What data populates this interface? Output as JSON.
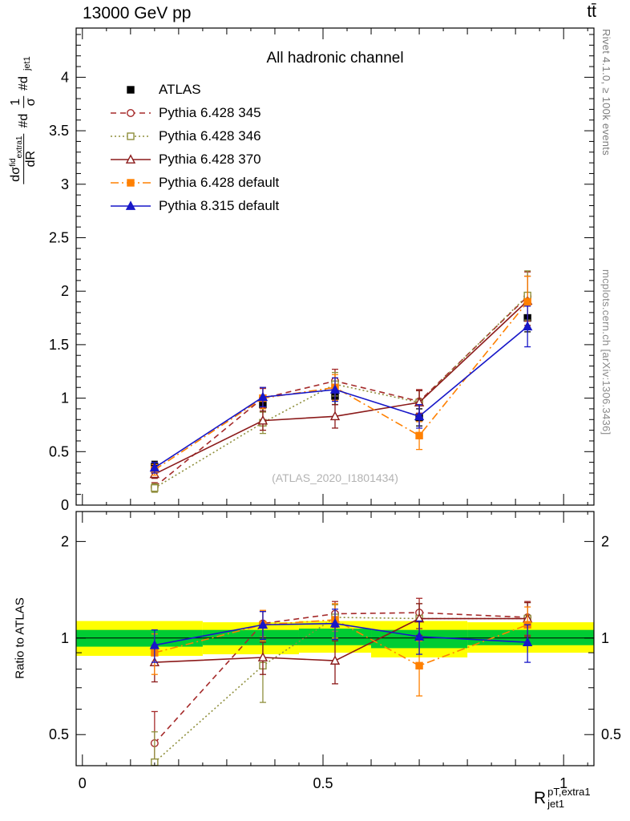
{
  "header": {
    "left": "13000 GeV pp",
    "right": "tt̄"
  },
  "side_notes": {
    "top": "Rivet 4.1.0, ≥ 100k events",
    "bottom": "mcplots.cern.ch [arXiv:1306.3436]"
  },
  "main_panel": {
    "title": "All hadronic channel",
    "watermark": "(ATLAS_2020_I1801434)"
  },
  "ratio_panel": {
    "ylabel": "Ratio to ATLAS"
  },
  "y_label": {
    "f2_num": "dσ",
    "f2_sup": "fid",
    "f2_sub": "extra1",
    "f2_den": "dR",
    "mid": "#d",
    "f1_num": "1",
    "f1_den": "σ",
    "pre": "#d",
    "tail": "jet1"
  },
  "x_label": {
    "base": "R",
    "sup": "pT,extra1",
    "sub": "jet1"
  },
  "chart_data": {
    "type": "line",
    "x": [
      0.15,
      0.375,
      0.525,
      0.7,
      0.925
    ],
    "xlim": [
      -0.013,
      1.063
    ],
    "xticks": [
      0,
      0.5,
      1
    ],
    "xtick_labels": [
      "0",
      "0.5",
      "1"
    ],
    "main": {
      "ylim": [
        0,
        4.46
      ],
      "yticks": [
        0,
        0.5,
        1,
        1.5,
        2,
        2.5,
        3,
        3.5,
        4
      ],
      "series": [
        {
          "name": "ATLAS",
          "color": "#000000",
          "marker": "square-filled",
          "line": "none",
          "values": [
            0.36,
            0.94,
            1.02,
            0.82,
            1.75
          ],
          "errors": [
            0.05,
            0.07,
            0.08,
            0.08,
            0.13
          ]
        },
        {
          "name": "Pythia 6.428 345",
          "color": "#a52a2a",
          "marker": "circle-open",
          "line": "dashed",
          "values": [
            0.17,
            1.0,
            1.16,
            0.97,
            1.95
          ],
          "errors": [
            0.04,
            0.09,
            0.11,
            0.11,
            0.23
          ]
        },
        {
          "name": "Pythia 6.428 346",
          "color": "#8f8f3c",
          "marker": "square-open",
          "line": "dotted",
          "values": [
            0.16,
            0.77,
            1.13,
            0.96,
            1.96
          ],
          "errors": [
            0.04,
            0.1,
            0.11,
            0.11,
            0.23
          ]
        },
        {
          "name": "Pythia 6.428 370",
          "color": "#8b1a1a",
          "marker": "triangle-open",
          "line": "solid",
          "values": [
            0.29,
            0.79,
            0.83,
            0.96,
            1.91
          ],
          "errors": [
            0.04,
            0.09,
            0.11,
            0.11,
            0.23
          ]
        },
        {
          "name": "Pythia 6.428 default",
          "color": "#ff8000",
          "marker": "square-filled",
          "line": "dashdot",
          "values": [
            0.33,
            1.0,
            1.1,
            0.65,
            1.9
          ],
          "errors": [
            0.05,
            0.1,
            0.12,
            0.13,
            0.24
          ]
        },
        {
          "name": "Pythia 8.315 default",
          "color": "#1717c8",
          "marker": "triangle-filled",
          "line": "solid",
          "values": [
            0.35,
            1.01,
            1.08,
            0.83,
            1.67
          ],
          "errors": [
            0.05,
            0.09,
            0.11,
            0.11,
            0.19
          ]
        }
      ]
    },
    "ratio": {
      "ylim": [
        0.4,
        2.48
      ],
      "yticks": [
        0.5,
        1,
        2
      ],
      "ytick_labels": [
        "0.5",
        "1",
        "2"
      ],
      "minor_ticks": [
        0.4,
        0.6,
        0.7,
        0.8,
        0.9
      ],
      "band_colors": {
        "outer": "#ffff00",
        "inner": "#00cc33"
      },
      "bands": {
        "edges": [
          -0.013,
          0.25,
          0.45,
          0.6,
          0.8,
          1.063
        ],
        "yellow": [
          [
            0.88,
            1.13
          ],
          [
            0.89,
            1.12
          ],
          [
            0.9,
            1.13
          ],
          [
            0.87,
            1.13
          ],
          [
            0.9,
            1.12
          ]
        ],
        "green": [
          [
            0.94,
            1.06
          ],
          [
            0.95,
            1.06
          ],
          [
            0.95,
            1.07
          ],
          [
            0.93,
            1.06
          ],
          [
            0.95,
            1.06
          ]
        ]
      },
      "series": [
        {
          "name": "Pythia 6.428 345",
          "color": "#a52a2a",
          "marker": "circle-open",
          "line": "dashed",
          "values": [
            0.47,
            1.11,
            1.19,
            1.2,
            1.16
          ],
          "errors": [
            0.12,
            0.1,
            0.11,
            0.13,
            0.14
          ]
        },
        {
          "name": "Pythia 6.428 346",
          "color": "#8f8f3c",
          "marker": "square-open",
          "line": "dotted",
          "values": [
            0.41,
            0.82,
            1.16,
            1.15,
            1.15
          ],
          "errors": [
            0.1,
            0.19,
            0.11,
            0.13,
            0.14
          ]
        },
        {
          "name": "Pythia 6.428 370",
          "color": "#8b1a1a",
          "marker": "triangle-open",
          "line": "solid",
          "values": [
            0.84,
            0.87,
            0.85,
            1.15,
            1.15
          ],
          "errors": [
            0.11,
            0.1,
            0.13,
            0.13,
            0.14
          ]
        },
        {
          "name": "Pythia 6.428 default",
          "color": "#ff8000",
          "marker": "square-filled",
          "line": "dashdot",
          "values": [
            0.9,
            1.1,
            1.14,
            0.82,
            1.1
          ],
          "errors": [
            0.13,
            0.12,
            0.14,
            0.16,
            0.15
          ]
        },
        {
          "name": "Pythia 8.315 default",
          "color": "#1717c8",
          "marker": "triangle-filled",
          "line": "solid",
          "values": [
            0.95,
            1.1,
            1.11,
            1.01,
            0.97
          ],
          "errors": [
            0.11,
            0.11,
            0.12,
            0.12,
            0.13
          ]
        }
      ]
    }
  }
}
